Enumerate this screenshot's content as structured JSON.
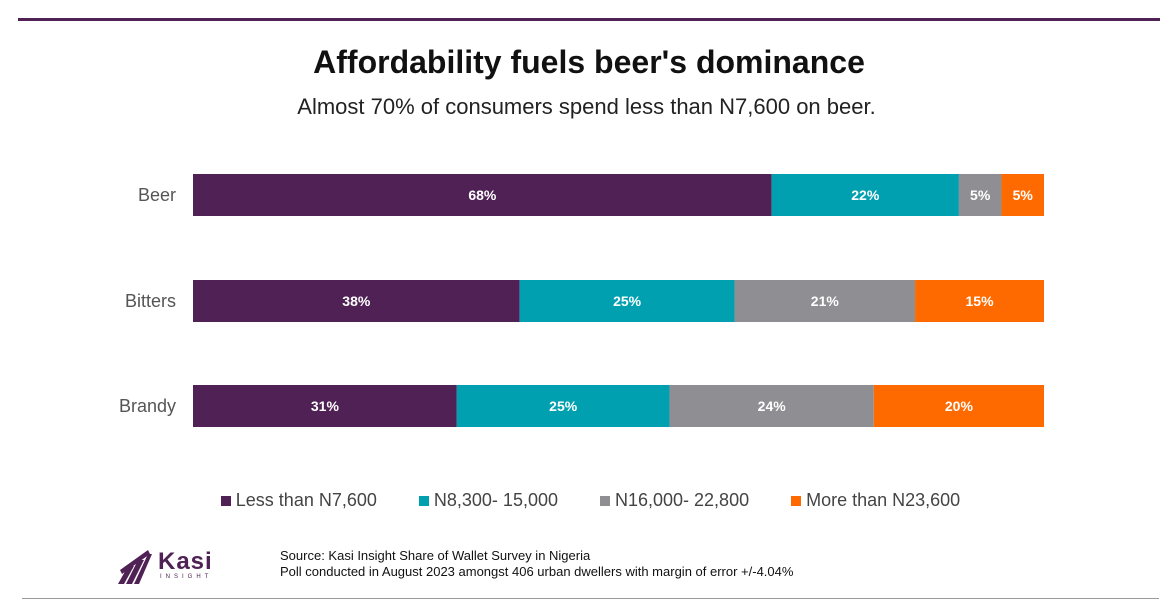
{
  "header": {
    "title": "Affordability fuels beer's dominance",
    "subtitle": "Almost 70% of consumers spend less than N7,600 on beer."
  },
  "colors": {
    "accent": "#4f2155",
    "series": [
      "#4f2155",
      "#00a0b0",
      "#8e8e93",
      "#ff6a00"
    ]
  },
  "chart_data": {
    "type": "bar",
    "orientation": "horizontal",
    "stacked": true,
    "categories": [
      "Beer",
      "Bitters",
      "Brandy"
    ],
    "series": [
      {
        "name": "Less than N7,600",
        "values": [
          68,
          38,
          31
        ]
      },
      {
        "name": "N8,300- 15,000",
        "values": [
          22,
          25,
          25
        ]
      },
      {
        "name": "N16,000- 22,800",
        "values": [
          5,
          21,
          24
        ]
      },
      {
        "name": "More than N23,600",
        "values": [
          5,
          15,
          20
        ]
      }
    ],
    "unit": "%",
    "legend_position": "bottom"
  },
  "logo": {
    "name": "Kasi",
    "sub": "INSIGHT"
  },
  "footer": {
    "source_line1": "Source: Kasi Insight Share of Wallet Survey in Nigeria",
    "source_line2": "Poll conducted in August 2023 amongst 406 urban dwellers with margin of error +/-4.04%"
  }
}
